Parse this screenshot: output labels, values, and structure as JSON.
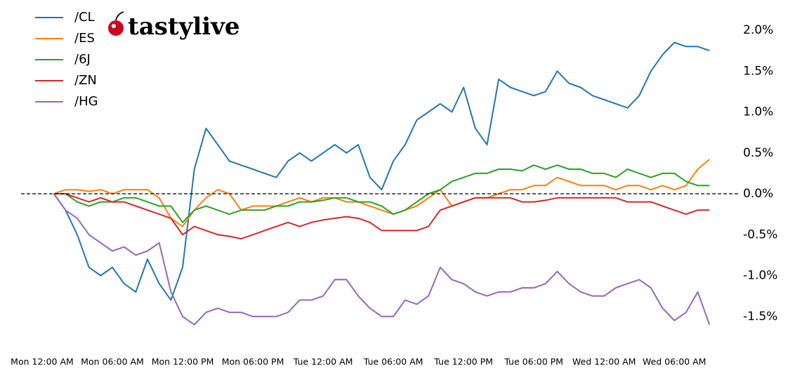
{
  "chart_data": {
    "type": "line",
    "logo": "tastylive",
    "categories": [
      "Mon 12:00 AM",
      null,
      null,
      null,
      null,
      null,
      "Mon 06:00 AM",
      null,
      null,
      null,
      null,
      null,
      "Mon 12:00 PM",
      null,
      null,
      null,
      null,
      null,
      "Mon 06:00 PM",
      null,
      null,
      null,
      null,
      null,
      "Tue 12:00 AM",
      null,
      null,
      null,
      null,
      null,
      "Tue 06:00 AM",
      null,
      null,
      null,
      null,
      null,
      "Tue 12:00 PM",
      null,
      null,
      null,
      null,
      null,
      "Tue 06:00 PM",
      null,
      null,
      null,
      null,
      null,
      "Wed 12:00 AM",
      null,
      null,
      null,
      null,
      null,
      "Wed 06:00 AM",
      null,
      null,
      null
    ],
    "series": [
      {
        "name": "/CL",
        "color": "#1f77b4",
        "values": [
          null,
          0,
          -0.2,
          -0.5,
          -0.9,
          -1.0,
          -0.9,
          -1.1,
          -1.2,
          -0.8,
          -1.1,
          -1.3,
          -0.9,
          0.3,
          0.8,
          0.6,
          0.4,
          0.35,
          0.3,
          0.25,
          0.2,
          0.4,
          0.5,
          0.4,
          0.5,
          0.6,
          0.5,
          0.6,
          0.2,
          0.05,
          0.4,
          0.6,
          0.9,
          1.0,
          1.1,
          1.0,
          1.3,
          0.8,
          0.6,
          1.4,
          1.3,
          1.25,
          1.2,
          1.25,
          1.5,
          1.35,
          1.3,
          1.2,
          1.15,
          1.1,
          1.05,
          1.2,
          1.5,
          1.7,
          1.85,
          1.8,
          1.8,
          1.75
        ]
      },
      {
        "name": "/ES",
        "color": "#ff7f0e",
        "values": [
          null,
          0,
          0.05,
          0.05,
          0.03,
          0.05,
          0.0,
          0.05,
          0.05,
          0.05,
          -0.05,
          -0.3,
          -0.4,
          -0.2,
          -0.05,
          0.05,
          0.0,
          -0.2,
          -0.15,
          -0.15,
          -0.15,
          -0.1,
          -0.05,
          -0.1,
          -0.05,
          -0.05,
          -0.1,
          -0.1,
          -0.15,
          -0.2,
          -0.25,
          -0.2,
          -0.15,
          -0.05,
          0.05,
          -0.15,
          -0.1,
          -0.05,
          -0.05,
          0.0,
          0.05,
          0.05,
          0.1,
          0.1,
          0.2,
          0.15,
          0.1,
          0.1,
          0.1,
          0.05,
          0.1,
          0.1,
          0.05,
          0.1,
          0.05,
          0.1,
          0.3,
          0.42
        ]
      },
      {
        "name": "/6J",
        "color": "#2ca02c",
        "values": [
          null,
          0,
          0.0,
          -0.1,
          -0.15,
          -0.1,
          -0.1,
          -0.05,
          -0.05,
          -0.1,
          -0.15,
          -0.15,
          -0.35,
          -0.2,
          -0.15,
          -0.2,
          -0.25,
          -0.2,
          -0.2,
          -0.2,
          -0.15,
          -0.15,
          -0.1,
          -0.1,
          -0.08,
          -0.05,
          -0.05,
          -0.1,
          -0.1,
          -0.15,
          -0.25,
          -0.2,
          -0.1,
          0.0,
          0.05,
          0.15,
          0.2,
          0.25,
          0.25,
          0.3,
          0.3,
          0.28,
          0.35,
          0.3,
          0.35,
          0.3,
          0.3,
          0.25,
          0.25,
          0.2,
          0.3,
          0.25,
          0.2,
          0.25,
          0.25,
          0.15,
          0.1,
          0.1
        ]
      },
      {
        "name": "/ZN",
        "color": "#d62728",
        "values": [
          null,
          0,
          0.0,
          -0.05,
          -0.1,
          -0.05,
          -0.1,
          -0.1,
          -0.15,
          -0.2,
          -0.25,
          -0.3,
          -0.5,
          -0.4,
          -0.45,
          -0.5,
          -0.52,
          -0.55,
          -0.5,
          -0.45,
          -0.4,
          -0.35,
          -0.4,
          -0.35,
          -0.32,
          -0.3,
          -0.28,
          -0.3,
          -0.35,
          -0.45,
          -0.45,
          -0.45,
          -0.45,
          -0.4,
          -0.2,
          -0.15,
          -0.1,
          -0.05,
          -0.05,
          -0.05,
          -0.05,
          -0.1,
          -0.1,
          -0.08,
          -0.05,
          -0.05,
          -0.05,
          -0.05,
          -0.05,
          -0.05,
          -0.1,
          -0.1,
          -0.1,
          -0.15,
          -0.2,
          -0.25,
          -0.2,
          -0.2
        ]
      },
      {
        "name": "/HG",
        "color": "#9467bd",
        "values": [
          null,
          0,
          -0.2,
          -0.3,
          -0.5,
          -0.6,
          -0.7,
          -0.65,
          -0.75,
          -0.7,
          -0.6,
          -1.2,
          -1.5,
          -1.6,
          -1.45,
          -1.4,
          -1.45,
          -1.45,
          -1.5,
          -1.5,
          -1.5,
          -1.45,
          -1.3,
          -1.3,
          -1.25,
          -1.05,
          -1.05,
          -1.25,
          -1.4,
          -1.5,
          -1.5,
          -1.3,
          -1.35,
          -1.25,
          -0.9,
          -1.05,
          -1.1,
          -1.2,
          -1.25,
          -1.2,
          -1.2,
          -1.15,
          -1.15,
          -1.1,
          -0.95,
          -1.1,
          -1.2,
          -1.25,
          -1.25,
          -1.15,
          -1.1,
          -1.05,
          -1.15,
          -1.4,
          -1.55,
          -1.45,
          -1.2,
          -1.6
        ]
      }
    ],
    "ylim": [
      -1.8,
      2.2
    ],
    "yticks": [
      {
        "value": 2,
        "label": "2.0%"
      },
      {
        "value": 1.5,
        "label": "1.5%"
      },
      {
        "value": 1,
        "label": "1.0%"
      },
      {
        "value": 0.5,
        "label": "0.5%"
      },
      {
        "value": 0,
        "label": "0.0%"
      },
      {
        "value": -0.5,
        "label": "-0.5%"
      },
      {
        "value": -1,
        "label": "-1.0%"
      },
      {
        "value": -1.5,
        "label": "-1.5%"
      }
    ],
    "reference_line": 0,
    "legend": "upper left",
    "y_axis_side": "right"
  }
}
